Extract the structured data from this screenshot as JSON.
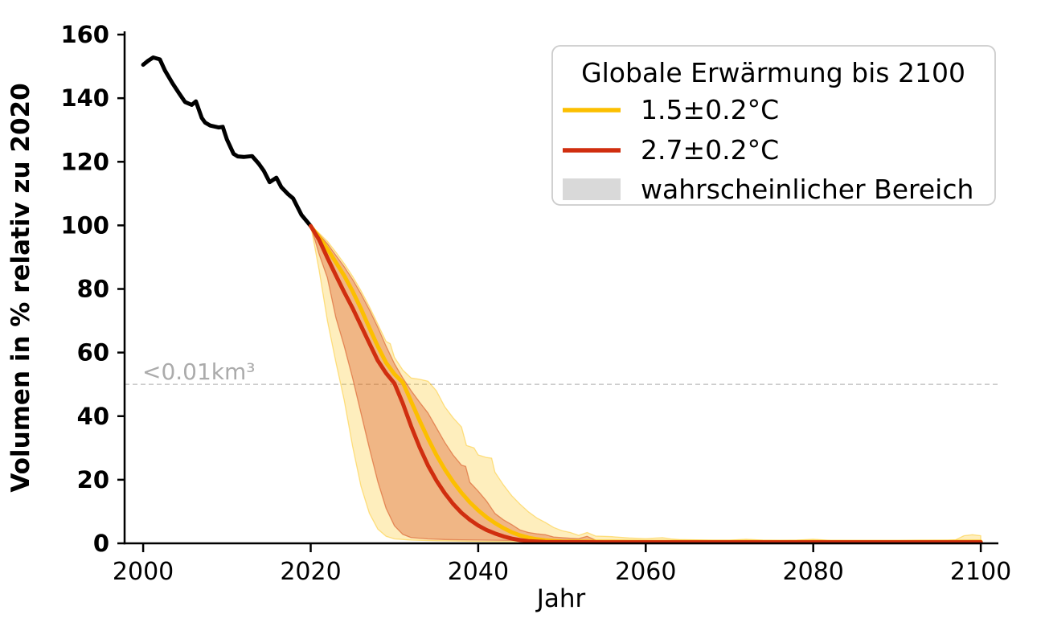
{
  "chart_data": {
    "type": "line",
    "xlabel": "Jahr",
    "ylabel": "Volumen in % relativ zu 2020",
    "xlim": [
      1997.8,
      2102.3
    ],
    "ylim": [
      0,
      161
    ],
    "xticks": [
      2000,
      2020,
      2040,
      2060,
      2080,
      2100
    ],
    "yticks": [
      0,
      20,
      40,
      60,
      80,
      100,
      120,
      140,
      160
    ],
    "grid": false,
    "background": "#ffffff",
    "threshold_line": {
      "y": 50,
      "label": "<0.01km³",
      "line_color": "#cccccc",
      "label_color": "#ababab",
      "style": "dashed"
    },
    "legend": {
      "title": "Globale Erwärmung bis 2100",
      "position": "upper right",
      "items": [
        {
          "label": "1.5±0.2°C",
          "swatch": "line",
          "color": "#fcbf00"
        },
        {
          "label": "2.7±0.2°C",
          "swatch": "line",
          "color": "#d02e0f"
        },
        {
          "label": "wahrscheinlicher Bereich",
          "swatch": "patch",
          "color": "#d9d9d9"
        }
      ]
    },
    "series": [
      {
        "id": "historical-black",
        "color": "#000000",
        "width": 5,
        "points": [
          [
            2000,
            150.5
          ],
          [
            2000.6,
            151.8
          ],
          [
            2001.2,
            152.8
          ],
          [
            2002,
            152.2
          ],
          [
            2002.6,
            148.7
          ],
          [
            2003.5,
            144.7
          ],
          [
            2004.3,
            141.5
          ],
          [
            2005,
            138.8
          ],
          [
            2005.8,
            137.9
          ],
          [
            2006.3,
            139.0
          ],
          [
            2007,
            133.8
          ],
          [
            2007.4,
            132.3
          ],
          [
            2008,
            131.4
          ],
          [
            2009,
            130.8
          ],
          [
            2009.5,
            131.0
          ],
          [
            2010,
            127.0
          ],
          [
            2010.8,
            122.5
          ],
          [
            2011.3,
            121.7
          ],
          [
            2012,
            121.5
          ],
          [
            2013,
            121.8
          ],
          [
            2013.8,
            119.4
          ],
          [
            2014.4,
            117.2
          ],
          [
            2015.1,
            113.6
          ],
          [
            2015.9,
            115.0
          ],
          [
            2016.5,
            112.0
          ],
          [
            2017.3,
            109.8
          ],
          [
            2017.9,
            108.5
          ],
          [
            2018.9,
            103.3
          ],
          [
            2020,
            99.8
          ]
        ]
      },
      {
        "id": "scenario-1p5",
        "color": "#fcbf00",
        "width": 5,
        "points": [
          [
            2020,
            99.8
          ],
          [
            2021,
            96.3
          ],
          [
            2022,
            92.6
          ],
          [
            2023,
            88.4
          ],
          [
            2024,
            84.2
          ],
          [
            2025,
            79.3
          ],
          [
            2026,
            73.8
          ],
          [
            2027,
            67.8
          ],
          [
            2028,
            62.0
          ],
          [
            2029,
            56.8
          ],
          [
            2030,
            53.2
          ],
          [
            2031,
            50.6
          ],
          [
            2032,
            44.6
          ],
          [
            2033,
            38.6
          ],
          [
            2034,
            33.0
          ],
          [
            2035,
            27.8
          ],
          [
            2036,
            23.3
          ],
          [
            2037,
            19.4
          ],
          [
            2038,
            15.9
          ],
          [
            2039,
            12.9
          ],
          [
            2040,
            10.4
          ],
          [
            2041,
            8.2
          ],
          [
            2042,
            6.4
          ],
          [
            2043,
            4.8
          ],
          [
            2044,
            3.5
          ],
          [
            2045,
            2.5
          ],
          [
            2046,
            1.8
          ],
          [
            2047,
            1.3
          ],
          [
            2048,
            0.95
          ],
          [
            2049,
            0.75
          ],
          [
            2050,
            0.6
          ],
          [
            2055,
            0.5
          ],
          [
            2060,
            0.45
          ],
          [
            2070,
            0.45
          ],
          [
            2080,
            0.45
          ],
          [
            2090,
            0.45
          ],
          [
            2100,
            0.5
          ]
        ]
      },
      {
        "id": "scenario-2p7",
        "color": "#d02e0f",
        "width": 5,
        "points": [
          [
            2020,
            99.8
          ],
          [
            2021,
            95.5
          ],
          [
            2022,
            89.8
          ],
          [
            2023,
            84.3
          ],
          [
            2024,
            79.0
          ],
          [
            2025,
            74.0
          ],
          [
            2026,
            68.5
          ],
          [
            2027,
            63.0
          ],
          [
            2028,
            57.5
          ],
          [
            2029,
            53.5
          ],
          [
            2030,
            50.3
          ],
          [
            2031,
            44.0
          ],
          [
            2032,
            36.8
          ],
          [
            2033,
            30.2
          ],
          [
            2034,
            24.5
          ],
          [
            2035,
            19.8
          ],
          [
            2036,
            15.8
          ],
          [
            2037,
            12.4
          ],
          [
            2038,
            9.6
          ],
          [
            2039,
            7.4
          ],
          [
            2040,
            5.6
          ],
          [
            2041,
            4.2
          ],
          [
            2042,
            3.1
          ],
          [
            2043,
            2.2
          ],
          [
            2044,
            1.5
          ],
          [
            2045,
            1.0
          ],
          [
            2046,
            0.7
          ],
          [
            2047,
            0.55
          ],
          [
            2048,
            0.45
          ],
          [
            2050,
            0.4
          ],
          [
            2055,
            0.35
          ],
          [
            2060,
            0.35
          ],
          [
            2070,
            0.35
          ],
          [
            2080,
            0.35
          ],
          [
            2090,
            0.35
          ],
          [
            2100,
            0.35
          ]
        ]
      }
    ],
    "bands": [
      {
        "id": "band-1p5",
        "color": "#fcbf00",
        "opacity": 0.26,
        "upper": [
          [
            2020,
            100
          ],
          [
            2021,
            97.6
          ],
          [
            2022,
            95.0
          ],
          [
            2023,
            91.6
          ],
          [
            2024,
            88.0
          ],
          [
            2025,
            84.0
          ],
          [
            2026,
            79.5
          ],
          [
            2027,
            74.5
          ],
          [
            2028,
            69.0
          ],
          [
            2029,
            63.5
          ],
          [
            2029.5,
            62.8
          ],
          [
            2030,
            58.5
          ],
          [
            2031,
            54.5
          ],
          [
            2032,
            52.0
          ],
          [
            2033,
            51.6
          ],
          [
            2034,
            51.0
          ],
          [
            2035,
            48.0
          ],
          [
            2036,
            43.0
          ],
          [
            2037,
            39.5
          ],
          [
            2038,
            36.6
          ],
          [
            2038.6,
            30.8
          ],
          [
            2039.5,
            30.0
          ],
          [
            2040,
            27.8
          ],
          [
            2041,
            27.0
          ],
          [
            2041.6,
            26.8
          ],
          [
            2042,
            22.4
          ],
          [
            2043,
            18.4
          ],
          [
            2044,
            15.0
          ],
          [
            2045,
            12.3
          ],
          [
            2046,
            9.9
          ],
          [
            2047,
            8.0
          ],
          [
            2048,
            6.6
          ],
          [
            2049,
            5.0
          ],
          [
            2050,
            4.0
          ],
          [
            2051,
            3.4
          ],
          [
            2052,
            2.5
          ],
          [
            2053,
            3.4
          ],
          [
            2054,
            2.3
          ],
          [
            2056,
            2.1
          ],
          [
            2058,
            1.7
          ],
          [
            2060,
            1.5
          ],
          [
            2062,
            1.8
          ],
          [
            2063,
            1.4
          ],
          [
            2064,
            1.2
          ],
          [
            2066,
            1.1
          ],
          [
            2068,
            1.0
          ],
          [
            2070,
            1.0
          ],
          [
            2072,
            1.3
          ],
          [
            2074,
            1.0
          ],
          [
            2076,
            0.9
          ],
          [
            2078,
            1.0
          ],
          [
            2080,
            1.3
          ],
          [
            2082,
            0.9
          ],
          [
            2085,
            0.85
          ],
          [
            2088,
            0.8
          ],
          [
            2092,
            0.8
          ],
          [
            2095,
            0.8
          ],
          [
            2097,
            1.1
          ],
          [
            2098,
            2.4
          ],
          [
            2099,
            2.7
          ],
          [
            2100,
            2.4
          ]
        ],
        "lower": [
          [
            2020,
            100
          ],
          [
            2021,
            86.0
          ],
          [
            2022,
            70.0
          ],
          [
            2023,
            57.0
          ],
          [
            2024,
            45.0
          ],
          [
            2025,
            30.5
          ],
          [
            2026,
            18.0
          ],
          [
            2027,
            9.5
          ],
          [
            2028,
            4.5
          ],
          [
            2029,
            2.2
          ],
          [
            2030,
            1.4
          ],
          [
            2032,
            1.0
          ],
          [
            2035,
            0.8
          ],
          [
            2040,
            0.6
          ],
          [
            2045,
            0.5
          ],
          [
            2050,
            0.4
          ],
          [
            2055,
            0.3
          ],
          [
            2060,
            0.25
          ],
          [
            2070,
            0.2
          ],
          [
            2080,
            0.2
          ],
          [
            2090,
            0.2
          ],
          [
            2100,
            0.2
          ]
        ]
      },
      {
        "id": "band-2p7",
        "color": "#d4420f",
        "opacity": 0.32,
        "upper": [
          [
            2020,
            100
          ],
          [
            2021,
            97.2
          ],
          [
            2022,
            94.2
          ],
          [
            2023,
            90.6
          ],
          [
            2024,
            87.0
          ],
          [
            2025,
            83.0
          ],
          [
            2026,
            78.5
          ],
          [
            2027,
            73.5
          ],
          [
            2028,
            68.0
          ],
          [
            2029,
            62.0
          ],
          [
            2030,
            56.5
          ],
          [
            2031,
            52.0
          ],
          [
            2032,
            48.0
          ],
          [
            2033,
            44.4
          ],
          [
            2034,
            41.0
          ],
          [
            2035,
            36.4
          ],
          [
            2036,
            31.8
          ],
          [
            2037,
            27.8
          ],
          [
            2038,
            24.6
          ],
          [
            2038.5,
            24.2
          ],
          [
            2039,
            19.2
          ],
          [
            2040,
            16.4
          ],
          [
            2041,
            13.3
          ],
          [
            2042,
            9.4
          ],
          [
            2043,
            7.4
          ],
          [
            2044,
            5.9
          ],
          [
            2045,
            4.2
          ],
          [
            2046,
            3.4
          ],
          [
            2047,
            3.0
          ],
          [
            2048,
            2.7
          ],
          [
            2049,
            2.0
          ],
          [
            2050,
            1.8
          ],
          [
            2051,
            1.6
          ],
          [
            2052,
            1.5
          ],
          [
            2053,
            2.2
          ],
          [
            2054,
            1.0
          ],
          [
            2056,
            0.85
          ],
          [
            2058,
            0.7
          ],
          [
            2060,
            0.55
          ],
          [
            2062,
            0.45
          ],
          [
            2065,
            0.4
          ],
          [
            2070,
            0.35
          ],
          [
            2080,
            0.3
          ],
          [
            2090,
            0.3
          ],
          [
            2100,
            0.3
          ]
        ],
        "lower": [
          [
            2020,
            100
          ],
          [
            2021,
            91.0
          ],
          [
            2022,
            83.5
          ],
          [
            2023,
            71.0
          ],
          [
            2024,
            62.0
          ],
          [
            2025,
            52.0
          ],
          [
            2026,
            41.0
          ],
          [
            2027,
            30.0
          ],
          [
            2028,
            19.5
          ],
          [
            2029,
            11.0
          ],
          [
            2030,
            5.5
          ],
          [
            2031,
            2.8
          ],
          [
            2032,
            1.8
          ],
          [
            2034,
            1.4
          ],
          [
            2036,
            1.2
          ],
          [
            2040,
            1.0
          ],
          [
            2044,
            0.9
          ],
          [
            2048,
            0.6
          ],
          [
            2052,
            0.45
          ],
          [
            2056,
            0.35
          ],
          [
            2060,
            0.25
          ],
          [
            2070,
            0.2
          ],
          [
            2080,
            0.2
          ],
          [
            2090,
            0.2
          ],
          [
            2100,
            0.2
          ]
        ]
      }
    ]
  }
}
